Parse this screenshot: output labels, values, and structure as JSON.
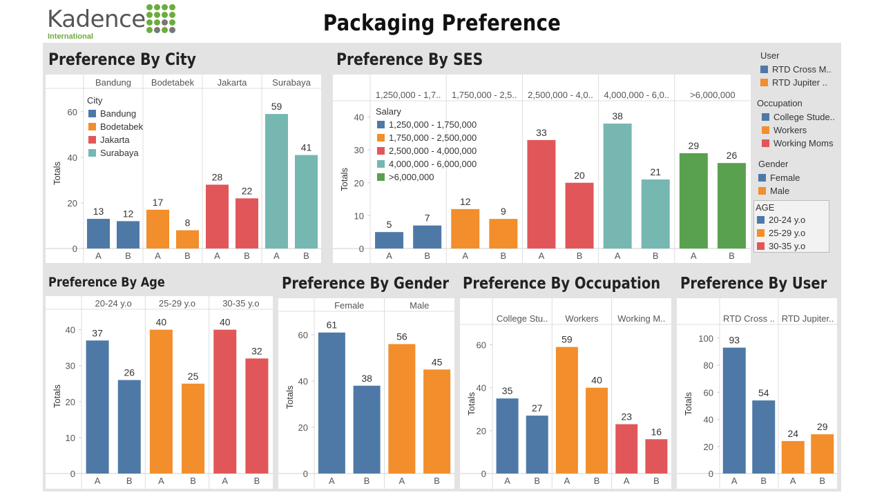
{
  "header": {
    "logo_text": "Kadence",
    "logo_subtext": "International",
    "title": "Packaging Preference"
  },
  "colors": {
    "blue": "#4e79a7",
    "orange": "#f28e2b",
    "red": "#e15759",
    "teal": "#76b7b2",
    "green": "#59a14f",
    "logo_green": "#6cac3c",
    "background_gray": "#e3e3e3"
  },
  "right_legend": {
    "groups": [
      {
        "title": "User",
        "items": [
          {
            "label": "RTD Cross M..",
            "color": "#4e79a7"
          },
          {
            "label": "RTD Jupiter ..",
            "color": "#f28e2b"
          }
        ]
      },
      {
        "title": "Occupation",
        "items": [
          {
            "label": "College Stude..",
            "color": "#4e79a7"
          },
          {
            "label": "Workers",
            "color": "#f28e2b"
          },
          {
            "label": "Working Moms",
            "color": "#e15759"
          }
        ]
      },
      {
        "title": "Gender",
        "items": [
          {
            "label": "Female",
            "color": "#4e79a7"
          },
          {
            "label": "Male",
            "color": "#f28e2b"
          }
        ]
      },
      {
        "title": "AGE",
        "items": [
          {
            "label": "20-24 y.o",
            "color": "#4e79a7"
          },
          {
            "label": "25-29 y.o",
            "color": "#f28e2b"
          },
          {
            "label": "30-35 y.o",
            "color": "#e15759"
          }
        ]
      }
    ]
  },
  "chart_data": [
    {
      "id": "city",
      "type": "bar",
      "title": "Preference By City",
      "ylabel": "Totals",
      "ylim": [
        0,
        66
      ],
      "yticks": [
        0,
        20,
        40,
        60
      ],
      "x_categories": [
        "A",
        "B"
      ],
      "groups": [
        {
          "label": "Bandung",
          "color": "#4e79a7",
          "values": [
            13,
            12
          ]
        },
        {
          "label": "Bodetabek",
          "color": "#f28e2b",
          "values": [
            17,
            8
          ]
        },
        {
          "label": "Jakarta",
          "color": "#e15759",
          "values": [
            28,
            22
          ]
        },
        {
          "label": "Surabaya",
          "color": "#76b7b2",
          "values": [
            59,
            41
          ]
        }
      ],
      "legend": {
        "title": "City",
        "position": "top-left",
        "items": [
          "Bandung",
          "Bodetabek",
          "Jakarta",
          "Surabaya"
        ]
      }
    },
    {
      "id": "ses",
      "type": "bar",
      "title": "Preference By SES",
      "ylabel": "Totals",
      "ylim": [
        0,
        42
      ],
      "yticks": [
        0,
        10,
        20,
        30,
        40
      ],
      "x_categories": [
        "A",
        "B"
      ],
      "groups": [
        {
          "label": "1,250,000 - 1,7..",
          "color": "#4e79a7",
          "values": [
            5,
            7
          ]
        },
        {
          "label": "1,750,000 - 2,5..",
          "color": "#f28e2b",
          "values": [
            12,
            9
          ]
        },
        {
          "label": "2,500,000 - 4,0..",
          "color": "#e15759",
          "values": [
            33,
            20
          ]
        },
        {
          "label": "4,000,000 - 6,0..",
          "color": "#76b7b2",
          "values": [
            38,
            21
          ]
        },
        {
          "label": ">6,000,000",
          "color": "#59a14f",
          "values": [
            29,
            26
          ]
        }
      ],
      "legend": {
        "title": "Salary",
        "position": "top-left",
        "items": [
          "1,250,000 - 1,750,000",
          "1,750,000 - 2,500,000",
          "2,500,000 - 4,000,000",
          "4,000,000 - 6,000,000",
          ">6,000,000"
        ]
      }
    },
    {
      "id": "age",
      "type": "bar",
      "title": "Preference By Age",
      "ylabel": "Totals",
      "ylim": [
        0,
        43
      ],
      "yticks": [
        0,
        10,
        20,
        30,
        40
      ],
      "x_categories": [
        "A",
        "B"
      ],
      "groups": [
        {
          "label": "20-24 y.o",
          "color": "#4e79a7",
          "values": [
            37,
            26
          ]
        },
        {
          "label": "25-29 y.o",
          "color": "#f28e2b",
          "values": [
            40,
            25
          ]
        },
        {
          "label": "30-35 y.o",
          "color": "#e15759",
          "values": [
            40,
            32
          ]
        }
      ]
    },
    {
      "id": "gender",
      "type": "bar",
      "title": "Preference By Gender",
      "ylabel": "Totals",
      "ylim": [
        0,
        66
      ],
      "yticks": [
        0,
        20,
        40,
        60
      ],
      "x_categories": [
        "A",
        "B"
      ],
      "groups": [
        {
          "label": "Female",
          "color": "#4e79a7",
          "values": [
            61,
            38
          ]
        },
        {
          "label": "Male",
          "color": "#f28e2b",
          "values": [
            56,
            45
          ]
        }
      ]
    },
    {
      "id": "occupation",
      "type": "bar",
      "title": "Preference By Occupation",
      "ylabel": "Totals",
      "ylim": [
        0,
        65
      ],
      "yticks": [
        0,
        20,
        40,
        60
      ],
      "x_categories": [
        "A",
        "B"
      ],
      "groups": [
        {
          "label": "College Stu..",
          "color": "#4e79a7",
          "values": [
            35,
            27
          ]
        },
        {
          "label": "Workers",
          "color": "#f28e2b",
          "values": [
            59,
            40
          ]
        },
        {
          "label": "Working M..",
          "color": "#e15759",
          "values": [
            23,
            16
          ]
        }
      ]
    },
    {
      "id": "user",
      "type": "bar",
      "title": "Preference By User",
      "ylabel": "Totals",
      "ylim": [
        0,
        103
      ],
      "yticks": [
        0,
        20,
        40,
        60,
        80,
        100
      ],
      "x_categories": [
        "A",
        "B"
      ],
      "groups": [
        {
          "label": "RTD Cross ..",
          "color": "#4e79a7",
          "values": [
            93,
            54
          ]
        },
        {
          "label": "RTD Jupiter..",
          "color": "#f28e2b",
          "values": [
            24,
            29
          ]
        }
      ]
    }
  ]
}
